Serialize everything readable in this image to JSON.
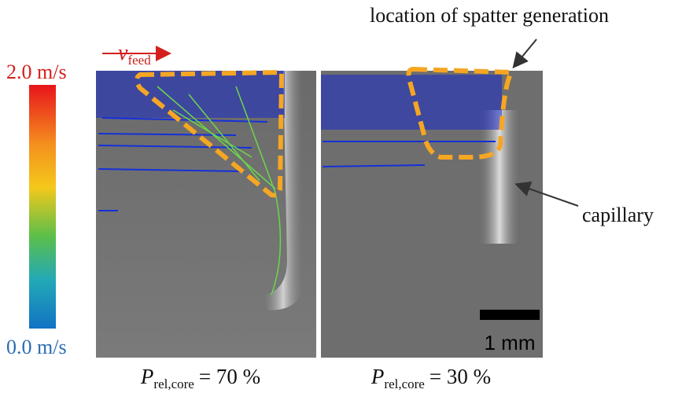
{
  "annotation": {
    "spatter": "location of spatter generation",
    "capillary": "capillary"
  },
  "feed": {
    "symbol": "v",
    "subscript": "feed"
  },
  "colorbar": {
    "max_label": "2.0 m/s",
    "min_label": "0.0 m/s"
  },
  "scale_bar": {
    "label": "1 mm"
  },
  "panels": [
    {
      "symbol": "P",
      "subscript": "rel,core",
      "value": "= 70 %"
    },
    {
      "symbol": "P",
      "subscript": "rel,core",
      "value": "= 30 %"
    }
  ]
}
